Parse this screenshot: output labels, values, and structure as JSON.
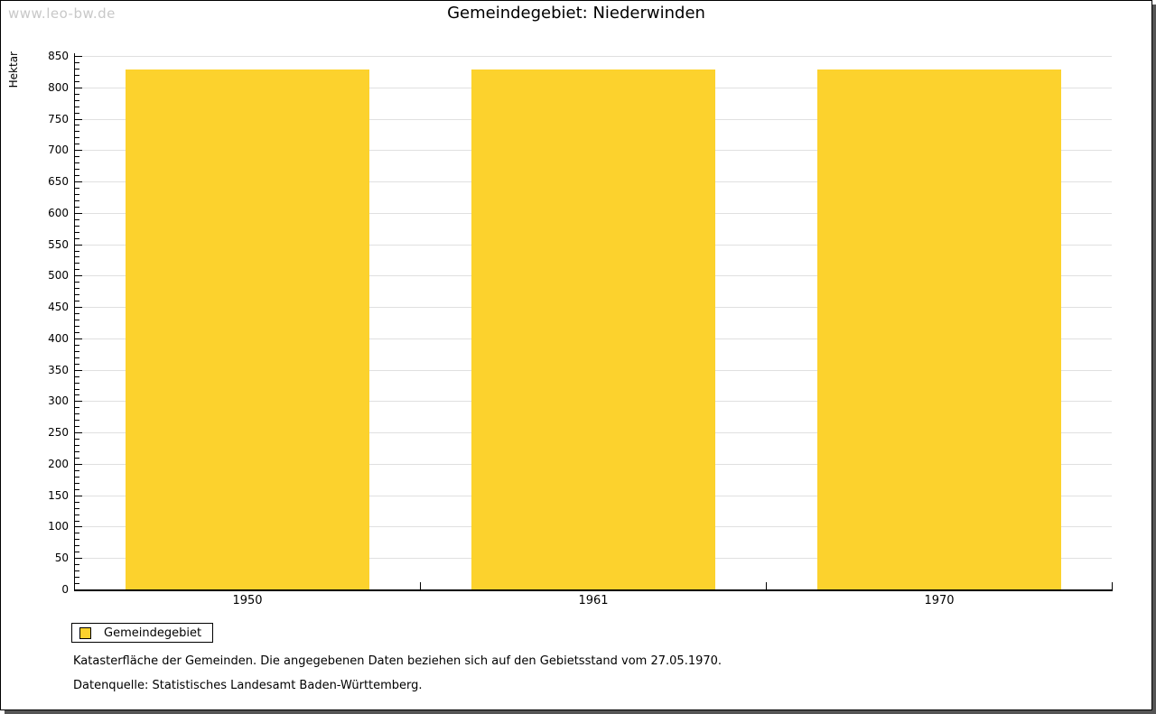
{
  "watermark": "www.leo-bw.de",
  "title": "Gemeindegebiet: Niederwinden",
  "chart_data": {
    "type": "bar",
    "title": "Gemeindegebiet: Niederwinden",
    "ylabel": "Hektar",
    "xlabel": "",
    "categories": [
      "1950",
      "1961",
      "1970"
    ],
    "series": [
      {
        "name": "Gemeindegebiet",
        "values": [
          829,
          829,
          829
        ],
        "color": "#fcd22d"
      }
    ],
    "ylim": [
      0,
      850
    ],
    "ytick_major": 50,
    "ytick_minor": 10,
    "grid": true,
    "legend_position": "bottom-left"
  },
  "legend": {
    "items": [
      {
        "label": "Gemeindegebiet",
        "swatch_color": "#fcd22d"
      }
    ]
  },
  "notes": {
    "line1": "Katasterfläche der Gemeinden. Die angegebenen Daten beziehen sich auf den Gebietsstand vom 27.05.1970.",
    "line2": "Datenquelle: Statistisches Landesamt Baden-Württemberg."
  },
  "colors": {
    "bar": "#fcd22d",
    "grid": "#e0e0e0",
    "axis": "#000000",
    "watermark": "#c8c8c8",
    "shadow": "#555555",
    "background": "#ffffff"
  }
}
